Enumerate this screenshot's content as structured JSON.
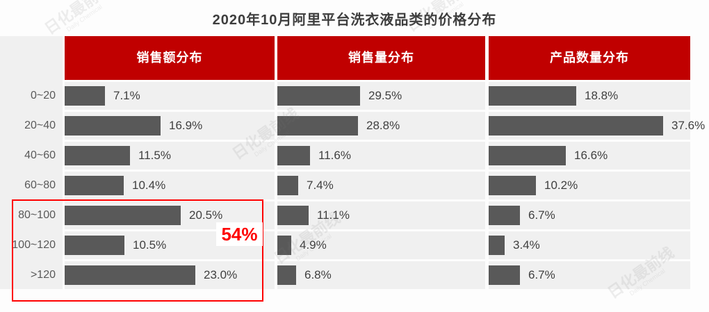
{
  "title": "2020年10月阿里平台洗衣液品类的价格分布",
  "watermark": "日化最前线",
  "watermark_sub": "Daily Chemical",
  "annotation": {
    "label": "54%"
  },
  "chart_data": {
    "type": "bar",
    "orientation": "horizontal",
    "title": "2020年10月阿里平台洗衣液品类的价格分布",
    "categories": [
      "0~20",
      "20~40",
      "40~60",
      "60~80",
      "80~100",
      "100~120",
      ">120"
    ],
    "series": [
      {
        "name": "销售额分布",
        "values": [
          7.1,
          16.9,
          11.5,
          10.4,
          20.5,
          10.5,
          23.0
        ]
      },
      {
        "name": "销售量分布",
        "values": [
          29.5,
          28.8,
          11.6,
          7.4,
          11.1,
          4.9,
          6.8
        ]
      },
      {
        "name": "产品数量分布",
        "values": [
          18.8,
          37.6,
          16.6,
          10.2,
          6.7,
          3.4,
          6.7
        ]
      }
    ],
    "value_suffix": "%",
    "data_labels": true,
    "grid": false,
    "legend_position": "column-headers",
    "annotation": {
      "text": "54%",
      "applies_to": "销售额分布: 80~100 + 100~120 + >120"
    },
    "colors": {
      "bar": "#595959",
      "header_bg": "#c00000",
      "header_text": "#ffffff",
      "row_band": "#f0f0f0",
      "annotation_red": "#fe0000",
      "category_text": "#595959",
      "value_text": "#404040"
    }
  }
}
